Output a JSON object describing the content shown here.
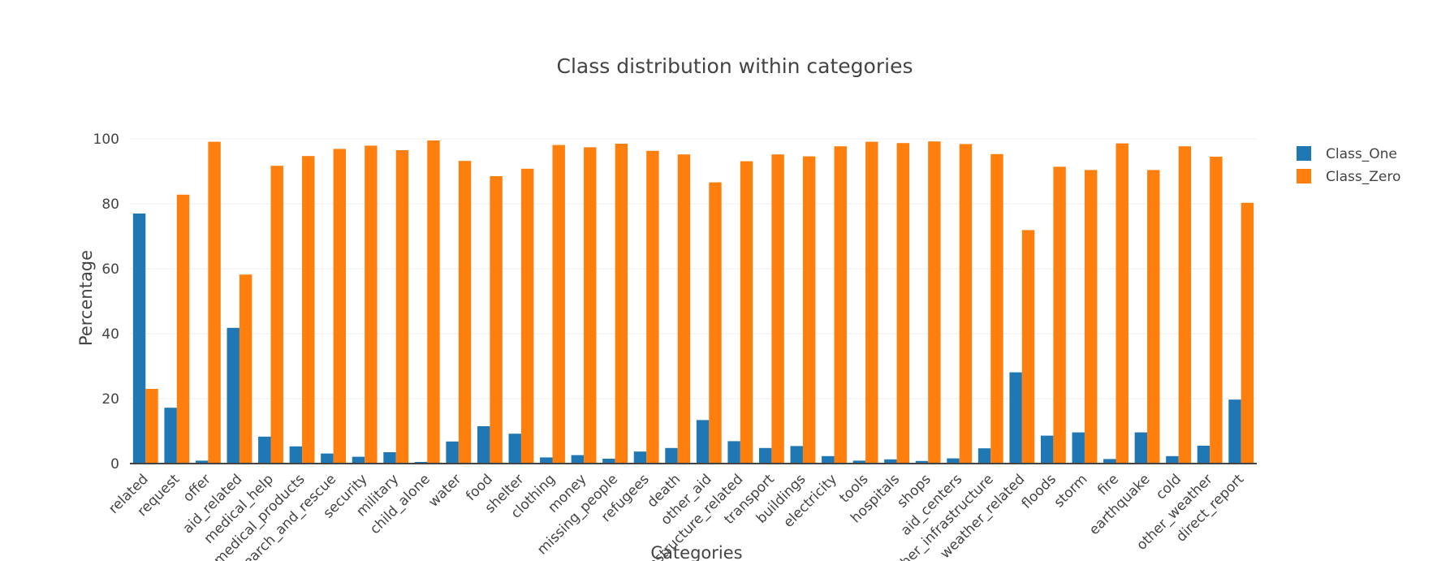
{
  "chart_data": {
    "type": "bar",
    "title": "Class distribution within categories",
    "xlabel": "Categories",
    "ylabel": "Percentage",
    "ylim": [
      0,
      105
    ],
    "yticks": [
      0,
      20,
      40,
      60,
      80,
      100
    ],
    "grid": true,
    "legend_position": "top-right",
    "categories": [
      "related",
      "request",
      "offer",
      "aid_related",
      "medical_help",
      "medical_products",
      "search_and_rescue",
      "security",
      "military",
      "child_alone",
      "water",
      "food",
      "shelter",
      "clothing",
      "money",
      "missing_people",
      "refugees",
      "death",
      "other_aid",
      "infrastructure_related",
      "transport",
      "buildings",
      "electricity",
      "tools",
      "hospitals",
      "shops",
      "aid_centers",
      "other_infrastructure",
      "weather_related",
      "floods",
      "storm",
      "fire",
      "earthquake",
      "cold",
      "other_weather",
      "direct_report"
    ],
    "series": [
      {
        "name": "Class_One",
        "color": "#1f77b4",
        "values": [
          77.0,
          17.2,
          0.9,
          41.8,
          8.3,
          5.3,
          3.1,
          2.1,
          3.5,
          0.5,
          6.8,
          11.5,
          9.2,
          1.9,
          2.6,
          1.5,
          3.7,
          4.8,
          13.4,
          6.9,
          4.8,
          5.4,
          2.3,
          0.9,
          1.3,
          0.8,
          1.6,
          4.7,
          28.1,
          8.6,
          9.6,
          1.4,
          9.6,
          2.3,
          5.5,
          19.7
        ]
      },
      {
        "name": "Class_Zero",
        "color": "#ff7f0e",
        "values": [
          23.0,
          82.8,
          99.1,
          58.2,
          91.7,
          94.7,
          96.9,
          97.9,
          96.5,
          99.5,
          93.2,
          88.5,
          90.8,
          98.1,
          97.4,
          98.5,
          96.3,
          95.2,
          86.6,
          93.1,
          95.2,
          94.6,
          97.7,
          99.1,
          98.7,
          99.2,
          98.4,
          95.3,
          71.9,
          91.4,
          90.4,
          98.6,
          90.4,
          97.7,
          94.5,
          80.3
        ]
      }
    ]
  }
}
